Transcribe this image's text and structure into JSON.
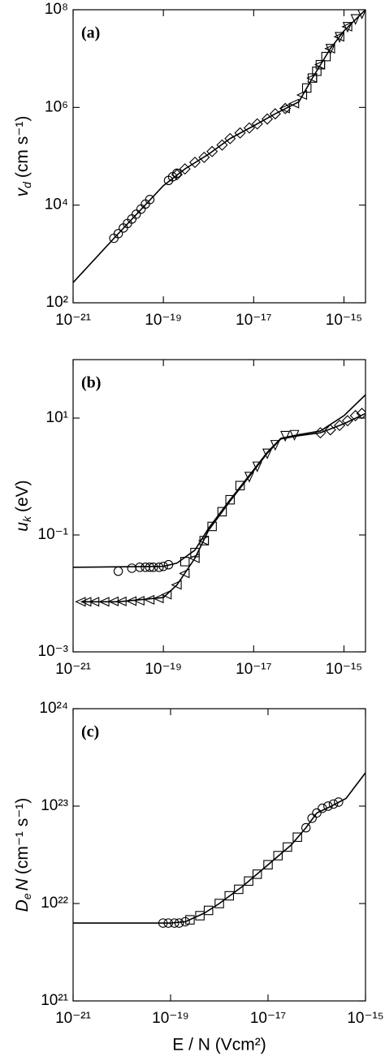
{
  "chart_data": [
    {
      "type": "line",
      "panel_label": "(a)",
      "xscale": "log",
      "yscale": "log",
      "ylabel": {
        "symbol": "v",
        "subscript": "d",
        "unit": "(cm s⁻¹)"
      },
      "xlim": [
        1e-21,
        3e-15
      ],
      "ylim": [
        100.0,
        100000000.0
      ],
      "xticks": [
        {
          "value": 1e-21,
          "label": "10⁻²¹"
        },
        {
          "value": 1e-19,
          "label": "10⁻¹⁹"
        },
        {
          "value": 1e-17,
          "label": "10⁻¹⁷"
        },
        {
          "value": 1e-15,
          "label": "10⁻¹⁵"
        }
      ],
      "yticks": [
        {
          "value": 100.0,
          "label": "10²"
        },
        {
          "value": 10000.0,
          "label": "10⁴"
        },
        {
          "value": 1000000.0,
          "label": "10⁶"
        },
        {
          "value": 100000000.0,
          "label": "10⁸"
        }
      ],
      "series": [
        {
          "color": "#000000",
          "x": [
            1e-21,
            1e-20,
            1e-19,
            3e-19,
            1e-18,
            3e-18,
            1e-17,
            3e-17,
            1e-16,
            2e-16,
            5e-16,
            1e-15,
            3e-15
          ],
          "values": [
            260.0,
            2600.0,
            25000.0,
            55000.0,
            110000.0,
            230000.0,
            420000.0,
            740000.0,
            1300000.0,
            4000000.0,
            16000000.0,
            37000000.0,
            100000000.0
          ]
        },
        {
          "color": "#000000",
          "marker": "circle",
          "x": [
            8e-21,
            1e-20,
            1.3e-20,
            1.6e-20,
            2e-20,
            2.5e-20,
            3.2e-20,
            4e-20,
            5e-20,
            1.3e-19,
            1.6e-19,
            2e-19
          ],
          "values": [
            2100.0,
            2600.0,
            3400.0,
            4200.0,
            5200.0,
            6500.0,
            8300.0,
            10500.0,
            13000.0,
            32000.0,
            38000.0,
            45000.0
          ]
        },
        {
          "color": "#000000",
          "marker": "diamond",
          "x": [
            2e-19,
            3e-19,
            5e-19,
            8e-19,
            1.2e-18,
            2e-18,
            3e-18,
            5e-18,
            8e-18,
            1.2e-17,
            2e-17,
            3e-17,
            5e-17
          ],
          "values": [
            42000.0,
            55000.0,
            75000.0,
            95000.0,
            125000.0,
            170000.0,
            230000.0,
            300000.0,
            380000.0,
            460000.0,
            580000.0,
            740000.0,
            950000.0
          ]
        },
        {
          "color": "#000000",
          "marker": "triangle-left",
          "x": [
            5e-17,
            8e-17,
            1.2e-16,
            2e-16,
            3e-16,
            5e-16,
            8e-16,
            1.2e-15
          ],
          "values": [
            950000.0,
            1200000.0,
            1800000.0,
            4000000.0,
            7500000.0,
            16000000.0,
            28000000.0,
            45000000.0
          ]
        },
        {
          "color": "#000000",
          "marker": "square",
          "x": [
            1.5e-16,
            2e-16,
            2.5e-16,
            3e-16,
            4e-16
          ],
          "values": [
            2500000.0,
            4000000.0,
            5500000.0,
            7500000.0,
            11000000.0
          ]
        },
        {
          "color": "#000000",
          "marker": "triangle-down",
          "x": [
            5e-16,
            8e-16,
            1.2e-15,
            1.8e-15,
            2.5e-15
          ],
          "values": [
            16000000.0,
            28000000.0,
            45000000.0,
            65000000.0,
            85000000.0
          ]
        }
      ]
    },
    {
      "type": "line",
      "panel_label": "(b)",
      "xscale": "log",
      "yscale": "log",
      "ylabel": {
        "symbol": "u",
        "subscript": "k",
        "unit": "(eV)"
      },
      "xlim": [
        1e-21,
        3e-15
      ],
      "ylim": [
        0.001,
        100.0
      ],
      "xticks": [
        {
          "value": 1e-21,
          "label": "10⁻²¹"
        },
        {
          "value": 1e-19,
          "label": "10⁻¹⁹"
        },
        {
          "value": 1e-17,
          "label": "10⁻¹⁷"
        },
        {
          "value": 1e-15,
          "label": "10⁻¹⁵"
        }
      ],
      "yticks": [
        {
          "value": 0.001,
          "label": "10⁻³"
        },
        {
          "value": 0.1,
          "label": "10⁻¹"
        },
        {
          "value": 10.0,
          "label": "10¹"
        }
      ],
      "series": [
        {
          "color": "#000000",
          "x": [
            1e-21,
            1e-19,
            2e-19,
            5e-19,
            1e-18,
            3e-18,
            1e-17,
            2e-17,
            4e-17,
            1e-16,
            3e-16,
            1e-15,
            3e-15
          ],
          "values": [
            0.028,
            0.029,
            0.033,
            0.055,
            0.13,
            0.4,
            1.3,
            2.6,
            4.5,
            5.2,
            6,
            11,
            25
          ]
        },
        {
          "color": "#000000",
          "x": [
            1.5e-21,
            1e-20,
            1e-19,
            2e-19,
            5e-19,
            1e-18,
            3e-18,
            1e-17,
            2e-17,
            4e-17,
            1e-16,
            3e-16,
            1e-15,
            3e-15
          ],
          "values": [
            0.0072,
            0.0072,
            0.0085,
            0.014,
            0.04,
            0.12,
            0.38,
            1.25,
            2.5,
            4.4,
            5,
            5.6,
            8,
            12
          ]
        },
        {
          "color": "#000000",
          "marker": "circle",
          "x": [
            1e-20,
            2e-20,
            3e-20,
            4e-20,
            5e-20,
            6e-20,
            8e-20,
            1e-19,
            1.3e-19
          ],
          "values": [
            0.024,
            0.027,
            0.028,
            0.028,
            0.028,
            0.028,
            0.028,
            0.029,
            0.031
          ]
        },
        {
          "color": "#000000",
          "marker": "triangle-left",
          "x": [
            1.5e-21,
            2e-21,
            3e-21,
            5e-21,
            8e-21,
            1.2e-20,
            2e-20,
            3e-20,
            5e-20,
            8e-20,
            1.2e-19,
            2e-19,
            3e-19,
            5e-19,
            8e-19
          ],
          "values": [
            0.0072,
            0.0072,
            0.0072,
            0.0072,
            0.0073,
            0.0073,
            0.0074,
            0.0075,
            0.0078,
            0.0082,
            0.0095,
            0.014,
            0.022,
            0.04,
            0.08
          ]
        },
        {
          "color": "#000000",
          "marker": "square",
          "x": [
            3e-19,
            5e-19,
            8e-19,
            1.2e-18,
            2e-18,
            3e-18,
            5e-18
          ],
          "values": [
            0.035,
            0.05,
            0.08,
            0.14,
            0.25,
            0.4,
            0.7
          ]
        },
        {
          "color": "#000000",
          "marker": "triangle-down",
          "x": [
            8e-18,
            1.2e-17,
            2e-17,
            3e-17,
            5e-17,
            8e-17
          ],
          "values": [
            1,
            1.5,
            2.5,
            3.5,
            5,
            5.2
          ]
        },
        {
          "color": "#000000",
          "marker": "diamond",
          "x": [
            3e-16,
            5e-16,
            8e-16,
            1.2e-15,
            1.8e-15,
            2.5e-15
          ],
          "values": [
            5.6,
            6.3,
            7.5,
            9,
            11,
            12
          ]
        }
      ]
    },
    {
      "type": "line",
      "panel_label": "(c)",
      "xscale": "log",
      "yscale": "log",
      "ylabel": {
        "symbol": "D",
        "subscript": "e",
        "rest": "N",
        "unit": "(cm⁻¹ s⁻¹)"
      },
      "xlabel": "E / N (Vcm²)",
      "xlim": [
        1e-21,
        1e-15
      ],
      "ylim": [
        1e+21,
        1e+24
      ],
      "xticks": [
        {
          "value": 1e-21,
          "label": "10⁻²¹"
        },
        {
          "value": 1e-19,
          "label": "10⁻¹⁹"
        },
        {
          "value": 1e-17,
          "label": "10⁻¹⁷"
        },
        {
          "value": 1e-15,
          "label": "10⁻¹⁵"
        }
      ],
      "yticks": [
        {
          "value": 1e+21,
          "label": "10²¹"
        },
        {
          "value": 1e+22,
          "label": "10²²"
        },
        {
          "value": 1e+23,
          "label": "10²³"
        },
        {
          "value": 1e+24,
          "label": "10²⁴"
        }
      ],
      "series": [
        {
          "color": "#000000",
          "x": [
            1e-21,
            1e-19,
            2e-19,
            5e-19,
            1e-18,
            3e-18,
            1e-17,
            3e-17,
            6e-17,
            1e-16,
            2e-16,
            4e-16,
            1e-15
          ],
          "values": [
            6.3e+21,
            6.3e+21,
            6.5e+21,
            8e+21,
            1e+22,
            1.5e+22,
            2.5e+22,
            4e+22,
            6e+22,
            8.5e+22,
            1e+23,
            1.2e+23,
            2.2e+23
          ]
        },
        {
          "color": "#000000",
          "marker": "circle",
          "x": [
            7e-20,
            9e-20,
            1.2e-19,
            1.5e-19,
            2e-19,
            6e-17,
            8e-17,
            1e-16,
            1.3e-16,
            1.7e-16,
            2.2e-16,
            2.8e-16
          ],
          "values": [
            6.3e+21,
            6.3e+21,
            6.3e+21,
            6.3e+21,
            6.5e+21,
            6e+22,
            7.5e+22,
            8.5e+22,
            9.5e+22,
            1e+23,
            1.05e+23,
            1.1e+23
          ]
        },
        {
          "color": "#000000",
          "marker": "square",
          "x": [
            2.5e-19,
            4e-19,
            6e-19,
            1e-18,
            1.6e-18,
            2.5e-18,
            4e-18,
            6e-18,
            1e-17,
            1.6e-17,
            2.5e-17,
            4e-17
          ],
          "values": [
            6.8e+21,
            7.5e+21,
            8.5e+21,
            1e+22,
            1.2e+22,
            1.4e+22,
            1.7e+22,
            2e+22,
            2.5e+22,
            3.1e+22,
            3.8e+22,
            4.8e+22
          ]
        }
      ]
    }
  ]
}
